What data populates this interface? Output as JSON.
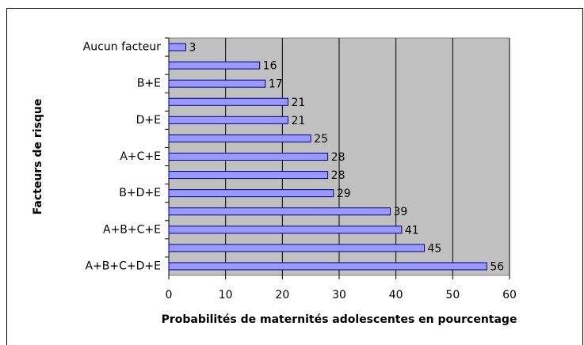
{
  "chart_data": {
    "type": "bar",
    "orientation": "horizontal",
    "x_label": "Probabilités de maternités adolescentes en pourcentage",
    "y_label": "Facteurs de risque",
    "categories": [
      "Aucun facteur",
      null,
      "B+E",
      null,
      "D+E",
      null,
      "A+C+E",
      null,
      "B+D+E",
      null,
      "A+B+C+E",
      null,
      "A+B+C+D+E"
    ],
    "values": [
      3,
      16,
      17,
      21,
      21,
      25,
      28,
      28,
      29,
      39,
      41,
      45,
      56
    ],
    "color": "#9999ff",
    "xlim": [
      0,
      60
    ],
    "xticks": [
      0,
      10,
      20,
      30,
      40,
      50,
      60
    ],
    "grid": true
  }
}
